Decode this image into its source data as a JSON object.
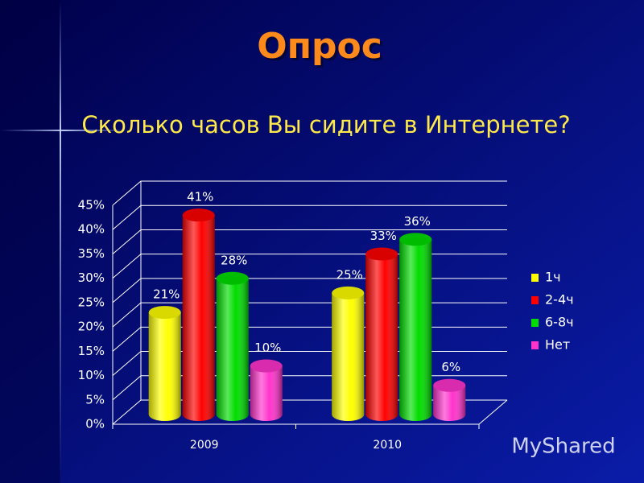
{
  "chart_data": {
    "type": "bar",
    "title": "Опрос",
    "subtitle": "Сколько часов Вы сидите в Интернете?",
    "categories": [
      "2009",
      "2010"
    ],
    "series": [
      {
        "name": "1ч",
        "color": "#ffff00",
        "values": [
          21,
          25
        ],
        "value_labels": [
          "21%",
          "25%"
        ]
      },
      {
        "name": "2-4ч",
        "color": "#ff0000",
        "values": [
          41,
          33
        ],
        "value_labels": [
          "41%",
          "33%"
        ]
      },
      {
        "name": "6-8ч",
        "color": "#00dd00",
        "values": [
          28,
          36
        ],
        "value_labels": [
          "28%",
          "36%"
        ]
      },
      {
        "name": "Нет",
        "color": "#ff33cc",
        "values": [
          10,
          6
        ],
        "value_labels": [
          "10%",
          "6%"
        ]
      }
    ],
    "ylim": [
      0,
      45
    ],
    "yticks": [
      {
        "value": 0,
        "label": "0%"
      },
      {
        "value": 5,
        "label": "5%"
      },
      {
        "value": 10,
        "label": "10%"
      },
      {
        "value": 15,
        "label": "15%"
      },
      {
        "value": 20,
        "label": "20%"
      },
      {
        "value": 25,
        "label": "25%"
      },
      {
        "value": 30,
        "label": "30%"
      },
      {
        "value": 35,
        "label": "35%"
      },
      {
        "value": 40,
        "label": "40%"
      },
      {
        "value": 45,
        "label": "45%"
      }
    ],
    "grid": true,
    "legend": "right",
    "watermark": "MyShared"
  }
}
